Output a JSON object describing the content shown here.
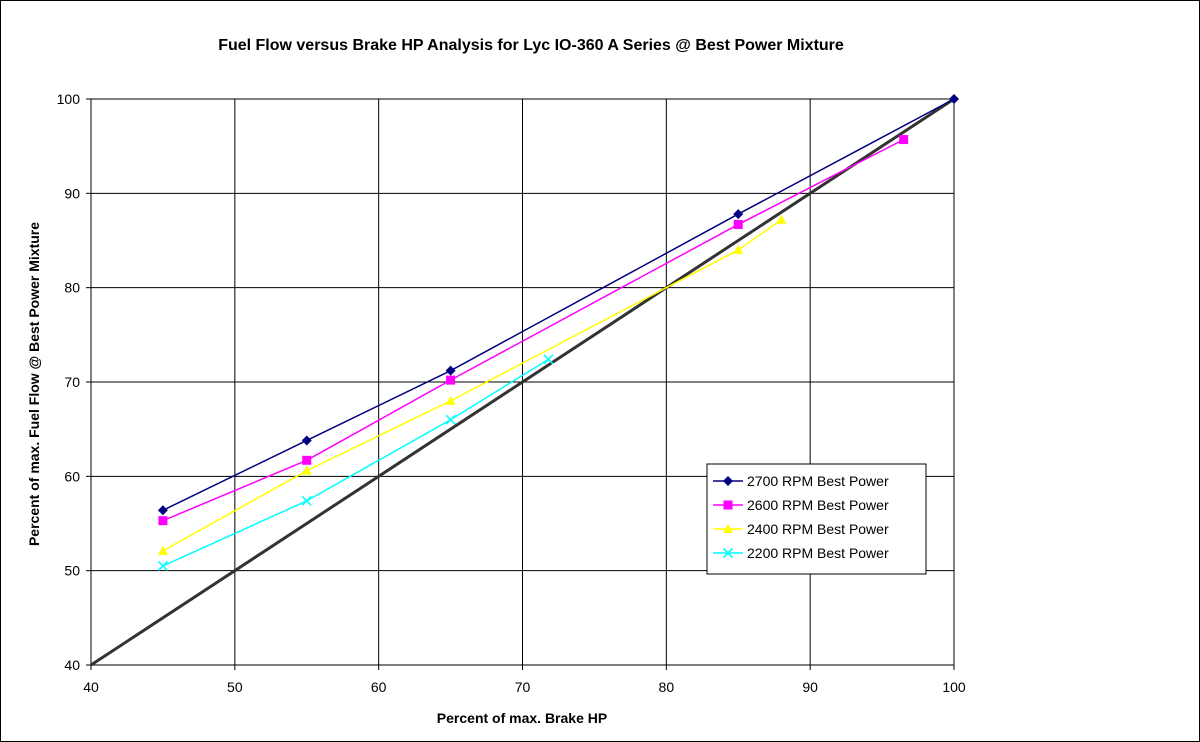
{
  "chart_data": {
    "type": "line",
    "title": "Fuel Flow versus Brake HP Analysis for Lyc IO-360 A Series @ Best Power Mixture",
    "xlabel": "Percent of max. Brake HP",
    "ylabel": "Percent of max. Fuel Flow @ Best Power Mixture",
    "xlim": [
      40,
      100
    ],
    "ylim": [
      40,
      100
    ],
    "xticks": [
      40,
      50,
      60,
      70,
      80,
      90,
      100
    ],
    "yticks": [
      40,
      50,
      60,
      70,
      80,
      90,
      100
    ],
    "grid": true,
    "legend_position": "lower-right",
    "reference_line": {
      "x": [
        40,
        100
      ],
      "y": [
        40,
        100
      ],
      "color": "#333333"
    },
    "series": [
      {
        "name": "2700 RPM Best Power",
        "color": "#000080",
        "marker": "diamond",
        "x": [
          45,
          55,
          65,
          85,
          100
        ],
        "y": [
          56.4,
          63.8,
          71.2,
          87.8,
          100
        ]
      },
      {
        "name": "2600 RPM Best Power",
        "color": "#ff00ff",
        "marker": "square",
        "x": [
          45,
          55,
          65,
          85,
          96.5
        ],
        "y": [
          55.3,
          61.7,
          70.2,
          86.7,
          95.7
        ]
      },
      {
        "name": "2400 RPM Best Power",
        "color": "#ffff00",
        "marker": "triangle",
        "x": [
          45,
          55,
          65,
          85,
          88
        ],
        "y": [
          52.1,
          60.6,
          68.0,
          84.0,
          87.2
        ]
      },
      {
        "name": "2200 RPM Best Power",
        "color": "#00ffff",
        "marker": "x",
        "x": [
          45,
          55,
          65,
          71.8
        ],
        "y": [
          50.5,
          57.4,
          66.0,
          72.4
        ]
      }
    ]
  }
}
